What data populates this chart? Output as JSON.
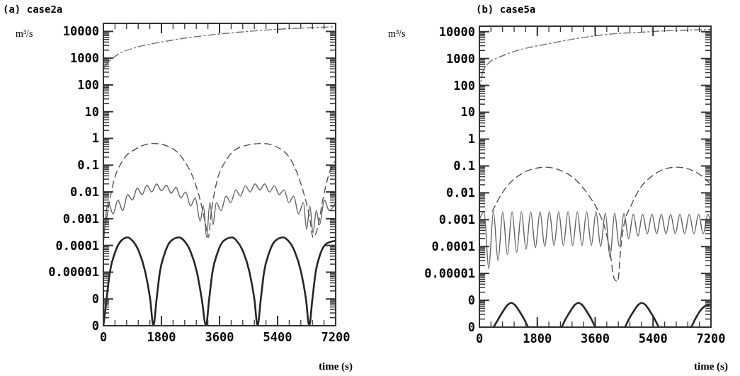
{
  "chart_data": [
    {
      "type": "line",
      "title": "(a) case2a",
      "xlabel": "time (s)",
      "ylabel": "m³/s",
      "log": "y",
      "grid": false,
      "xlim": [
        0,
        7200
      ],
      "xticks": [
        0,
        1800,
        3600,
        5400,
        7200
      ],
      "ylim": [
        1e-07,
        20000
      ],
      "yticks": [
        {
          "value": 1e-07,
          "label": "0"
        },
        {
          "value": 1e-06,
          "label": "0"
        },
        {
          "value": 1e-05,
          "label": "0.00001"
        },
        0.0001,
        0.001,
        0.01,
        0.1,
        1,
        10,
        100,
        1000,
        10000
      ],
      "series": [
        {
          "color": "#707070",
          "line_style": "dashdot",
          "x": [
            0,
            100,
            200,
            500,
            1000,
            1800,
            2700,
            3600,
            4500,
            5400,
            6300,
            7200
          ],
          "values": [
            400,
            600,
            800,
            1500,
            2500,
            4000,
            6000,
            8000,
            10000,
            12000,
            13500,
            15000
          ]
        },
        {
          "color": "#505050",
          "line_style": "dashed",
          "x": [
            100,
            300,
            600,
            1000,
            1560,
            2100,
            2500,
            2800,
            3000,
            3150,
            3250,
            3350,
            3500,
            3800,
            4300,
            4920,
            5500,
            5900,
            6200,
            6400,
            6500,
            6650,
            6800,
            7000,
            7200
          ],
          "values": [
            0.001,
            0.02,
            0.15,
            0.4,
            0.65,
            0.45,
            0.15,
            0.03,
            0.005,
            0.0008,
            0.0002,
            0.002,
            0.02,
            0.15,
            0.5,
            0.65,
            0.4,
            0.1,
            0.01,
            0.001,
            0.0002,
            0.0005,
            0.005,
            0.05,
            0.15
          ]
        },
        {
          "color": "#606060",
          "line_style": "solid",
          "x": [
            0,
            150,
            300,
            450,
            600,
            750,
            900,
            1050,
            1200,
            1350,
            1500,
            1650,
            1800,
            1950,
            2100,
            2250,
            2400,
            2550,
            2700,
            2850,
            3000,
            3100,
            3200,
            3300,
            3400,
            3500,
            3650,
            3800,
            3950,
            4100,
            4250,
            4400,
            4550,
            4700,
            4850,
            5000,
            5150,
            5300,
            5450,
            5600,
            5750,
            5900,
            6050,
            6200,
            6300,
            6400,
            6500,
            6600,
            6700,
            6850,
            7000,
            7200
          ],
          "values": [
            0.0001,
            0.004,
            0.0015,
            0.005,
            0.002,
            0.008,
            0.005,
            0.014,
            0.008,
            0.018,
            0.01,
            0.02,
            0.011,
            0.018,
            0.009,
            0.015,
            0.006,
            0.01,
            0.003,
            0.006,
            0.0008,
            0.003,
            0.0002,
            0.004,
            0.0006,
            0.004,
            0.002,
            0.007,
            0.004,
            0.012,
            0.007,
            0.017,
            0.01,
            0.02,
            0.012,
            0.02,
            0.01,
            0.017,
            0.008,
            0.012,
            0.004,
            0.007,
            0.0015,
            0.004,
            0.0004,
            0.003,
            0.0003,
            0.002,
            0.0006,
            0.005,
            0.002,
            0.004
          ]
        },
        {
          "color": "#252525",
          "line_style": "solid",
          "x": [
            0,
            100,
            200,
            350,
            550,
            750,
            900,
            1100,
            1300,
            1450,
            1550,
            1650,
            1750,
            1900,
            2100,
            2350,
            2500,
            2700,
            2900,
            3050,
            3180,
            3280,
            3380,
            3530,
            3730,
            4000,
            4130,
            4330,
            4530,
            4680,
            4780,
            4880,
            4980,
            5130,
            5330,
            5580,
            5730,
            5930,
            6130,
            6280,
            6380,
            6480,
            6580,
            6730,
            6930,
            7200
          ],
          "values": [
            1e-07,
            1e-06,
            1e-05,
            5e-05,
            0.00015,
            0.0002,
            0.00015,
            6e-05,
            1e-05,
            1e-06,
            1e-07,
            1e-06,
            1e-05,
            5e-05,
            0.00015,
            0.0002,
            0.00015,
            6e-05,
            1e-05,
            1e-06,
            1e-07,
            1e-06,
            1e-05,
            5e-05,
            0.00015,
            0.0002,
            0.00015,
            6e-05,
            1e-05,
            1e-06,
            1e-07,
            1e-06,
            1e-05,
            5e-05,
            0.00015,
            0.0002,
            0.00015,
            6e-05,
            1e-05,
            1e-06,
            1e-07,
            1e-06,
            1e-05,
            5e-05,
            0.00012,
            0.00015
          ]
        }
      ]
    },
    {
      "type": "line",
      "title": "(b) case5a",
      "xlabel": "time (s)",
      "ylabel": "m³/s",
      "log": "y",
      "grid": false,
      "xlim": [
        0,
        7200
      ],
      "xticks": [
        0,
        1800,
        3600,
        5400,
        7200
      ],
      "ylim": [
        1e-07,
        16000
      ],
      "yticks": [
        {
          "value": 1e-07,
          "label": "0"
        },
        {
          "value": 1e-06,
          "label": "0"
        },
        {
          "value": 1e-05,
          "label": "0.00001"
        },
        0.0001,
        0.001,
        0.01,
        0.1,
        1,
        10,
        100,
        1000,
        10000
      ],
      "series": [
        {
          "color": "#707070",
          "line_style": "dashdot",
          "x": [
            0,
            100,
            300,
            600,
            1000,
            1500,
            2000,
            3000,
            4000,
            5000,
            6000,
            7200
          ],
          "values": [
            60,
            300,
            700,
            1100,
            1700,
            2500,
            3300,
            5500,
            8000,
            9500,
            11000,
            12000
          ]
        },
        {
          "color": "#505050",
          "line_style": "dashed",
          "x": [
            400,
            600,
            900,
            1300,
            1700,
            2050,
            2500,
            3000,
            3400,
            3700,
            3900,
            4050,
            4200,
            4300,
            4400,
            4500,
            4700,
            5000,
            5400,
            5800,
            6160,
            6600,
            7000,
            7200
          ],
          "values": [
            0.002,
            0.006,
            0.02,
            0.05,
            0.08,
            0.09,
            0.07,
            0.03,
            0.008,
            0.002,
            0.0005,
            8e-05,
            6e-06,
            5e-06,
            0.0001,
            0.0007,
            0.003,
            0.015,
            0.045,
            0.08,
            0.09,
            0.07,
            0.035,
            0.02
          ]
        },
        {
          "color": "#606060",
          "line_style": "solid",
          "x": [
            0,
            145,
            290,
            435,
            580,
            725,
            870,
            1015,
            1160,
            1305,
            1450,
            1595,
            1740,
            1885,
            2030,
            2175,
            2320,
            2465,
            2610,
            2755,
            2900,
            3045,
            3190,
            3335,
            3480,
            3625,
            3770,
            3915,
            4060,
            4205,
            4350,
            4495,
            4640,
            4785,
            4930,
            5075,
            5220,
            5365,
            5510,
            5655,
            5800,
            5945,
            6090,
            6235,
            6380,
            6525,
            6670,
            6815,
            6960,
            7105,
            7200
          ],
          "values": [
            0.001,
            0.002,
            1.5e-05,
            0.002,
            3e-05,
            0.002,
            5e-05,
            0.002,
            6e-05,
            0.002,
            8e-05,
            0.002,
            9e-05,
            0.002,
            0.0001,
            0.002,
            0.00011,
            0.002,
            0.00011,
            0.002,
            0.00011,
            0.002,
            0.00011,
            0.002,
            0.00011,
            0.002,
            0.0001,
            0.0018,
            4e-05,
            0.0018,
            0.0001,
            0.0017,
            0.0002,
            0.0016,
            0.00025,
            0.0016,
            0.0003,
            0.0016,
            0.0003,
            0.0016,
            0.0003,
            0.0016,
            0.0003,
            0.0016,
            0.0003,
            0.0016,
            0.0003,
            0.0016,
            0.0003,
            0.0016,
            0.0006
          ]
        },
        {
          "color": "#252525",
          "line_style": "solid",
          "x": [
            440,
            590,
            740,
            890,
            990,
            1090,
            1240,
            1390,
            1540,
            2530,
            2680,
            2830,
            2980,
            3080,
            3180,
            3330,
            3480,
            3630,
            4500,
            4650,
            4800,
            4950,
            5050,
            5150,
            5300,
            5450,
            5600,
            6560,
            6710,
            6860,
            7010,
            7200
          ],
          "values": [
            1e-07,
            2e-07,
            4e-07,
            7e-07,
            8e-07,
            7e-07,
            4e-07,
            2e-07,
            1e-07,
            1e-07,
            2e-07,
            4e-07,
            7e-07,
            8e-07,
            7e-07,
            4e-07,
            2e-07,
            1e-07,
            1e-07,
            2e-07,
            4e-07,
            7e-07,
            8e-07,
            7e-07,
            4e-07,
            2e-07,
            1e-07,
            1e-07,
            2e-07,
            4e-07,
            6e-07,
            7e-07
          ]
        }
      ]
    }
  ]
}
